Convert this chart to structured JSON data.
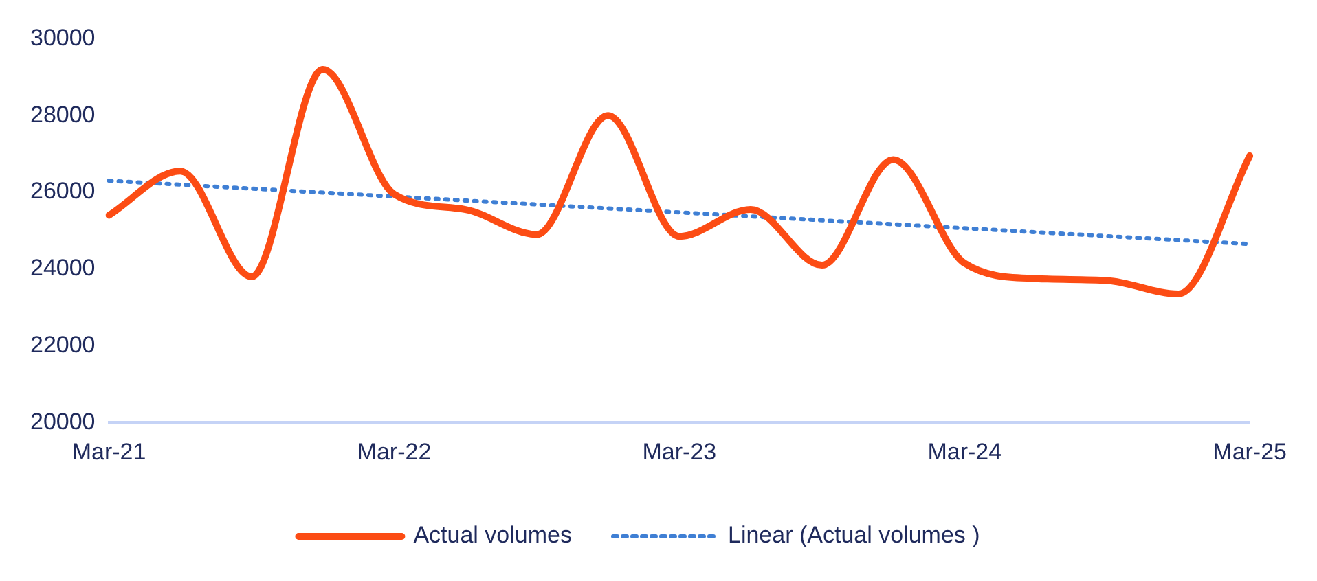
{
  "chart_data": {
    "type": "line",
    "categories": [
      "Mar-21",
      null,
      null,
      null,
      "Mar-22",
      null,
      null,
      null,
      "Mar-23",
      null,
      null,
      null,
      "Mar-24",
      null,
      null,
      null,
      "Mar-25"
    ],
    "series": [
      {
        "name": "Actual volumes",
        "color": "#fc4c14",
        "line_style": "solid",
        "values": [
          25400,
          26550,
          23800,
          29200,
          25950,
          25550,
          24900,
          28000,
          24850,
          25550,
          24100,
          26850,
          24150,
          23750,
          23700,
          23350,
          26950
        ]
      },
      {
        "name": "Linear (Actual volumes )",
        "color": "#3f7fd4",
        "line_style": "dotted",
        "values": [
          26300,
          null,
          null,
          null,
          null,
          null,
          null,
          null,
          null,
          null,
          null,
          null,
          null,
          null,
          null,
          null,
          24650
        ]
      }
    ],
    "ylim": [
      20000,
      30000
    ],
    "yticks": [
      20000,
      22000,
      24000,
      26000,
      28000,
      30000
    ],
    "grid": false,
    "legend": "bottom",
    "marker": "none"
  }
}
